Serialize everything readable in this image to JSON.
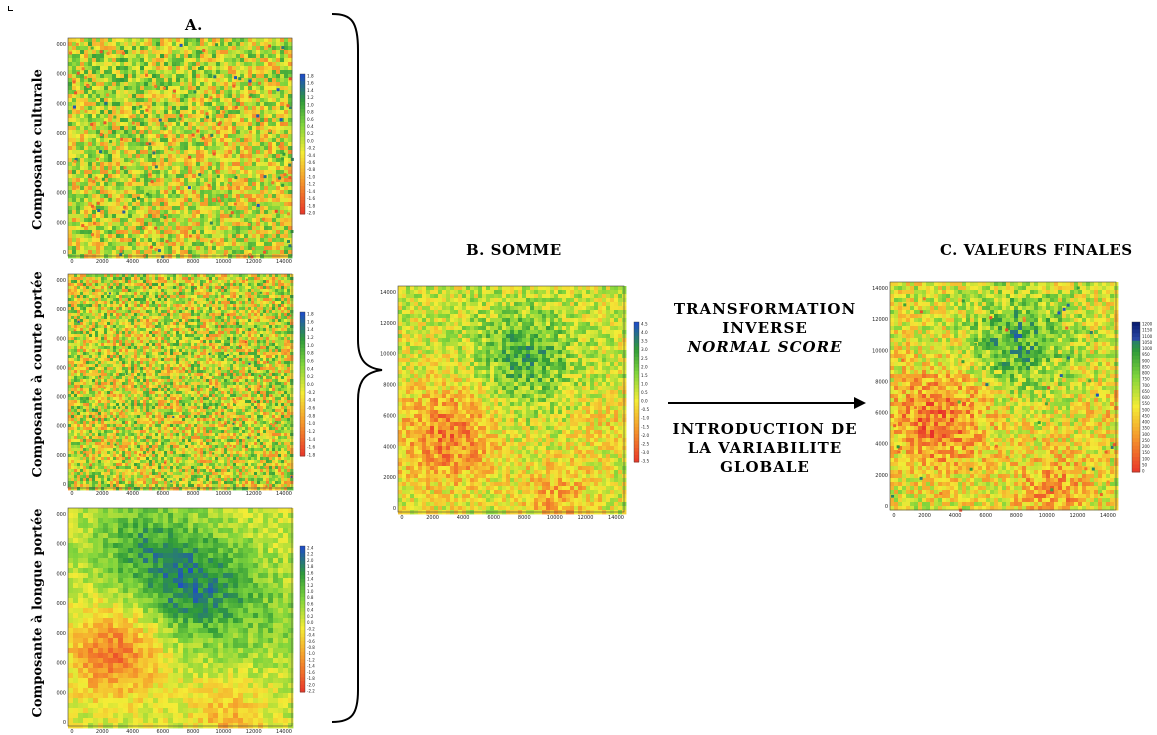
{
  "colors": {
    "low": "#e8312a",
    "mid_low": "#f59a2c",
    "mid": "#f4ec36",
    "mid_high": "#7fd43c",
    "high": "#2f9a3a",
    "top": "#1f4fc4",
    "darkest": "#0b1f73"
  },
  "panel_a": {
    "label": "A.",
    "maps": [
      {
        "side_label": "Composante culturale",
        "texture": "patchy",
        "colorbar_labels": [
          "1.8",
          "1.6",
          "1.4",
          "1.2",
          "1.0",
          "0.8",
          "0.6",
          "0.4",
          "0.2",
          "0.0",
          "-0.2",
          "-0.4",
          "-0.6",
          "-0.8",
          "-1.0",
          "-1.2",
          "-1.4",
          "-1.6",
          "-1.8",
          "-2.0"
        ]
      },
      {
        "side_label": "Composante à courte portée",
        "texture": "fine",
        "colorbar_labels": [
          "1.8",
          "1.6",
          "1.4",
          "1.2",
          "1.0",
          "0.8",
          "0.6",
          "0.4",
          "0.2",
          "0.0",
          "-0.2",
          "-0.4",
          "-0.6",
          "-0.8",
          "-1.0",
          "-1.2",
          "-1.4",
          "-1.6",
          "-1.8"
        ]
      },
      {
        "side_label": "Composante à longue portée",
        "texture": "smooth",
        "colorbar_labels": [
          "2.4",
          "2.2",
          "2.0",
          "1.8",
          "1.6",
          "1.4",
          "1.2",
          "1.0",
          "0.8",
          "0.6",
          "0.4",
          "0.2",
          "0.0",
          "-0.2",
          "-0.4",
          "-0.6",
          "-0.8",
          "-1.0",
          "-1.2",
          "-1.4",
          "-1.6",
          "-1.8",
          "-2.0",
          "-2.2"
        ]
      }
    ]
  },
  "panel_b": {
    "label": "B. SOMME",
    "colorbar_labels": [
      "4.5",
      "4.0",
      "3.5",
      "3.0",
      "2.5",
      "2.0",
      "1.5",
      "1.0",
      "0.5",
      "0.0",
      "-0.5",
      "-1.0",
      "-1.5",
      "-2.0",
      "-2.5",
      "-3.0",
      "-3.5"
    ]
  },
  "panel_c": {
    "label": "C. VALEURS FINALES",
    "colorbar_labels": [
      "1200",
      "1150",
      "1100",
      "1050",
      "1000",
      "950",
      "900",
      "850",
      "800",
      "750",
      "700",
      "650",
      "600",
      "550",
      "500",
      "450",
      "400",
      "350",
      "300",
      "250",
      "200",
      "150",
      "100",
      "50",
      "0"
    ]
  },
  "axis": {
    "y_ticks": [
      "14000",
      "12000",
      "10000",
      "8000",
      "6000",
      "4000",
      "2000",
      "0"
    ],
    "x_ticks": [
      "0",
      "2000",
      "4000",
      "6000",
      "8000",
      "10000",
      "12000",
      "14000"
    ]
  },
  "middle_text": {
    "line1": "TRANSFORMATION",
    "line2": "INVERSE",
    "line3": "NORMAL SCORE",
    "line4": "INTRODUCTION DE",
    "line5": "LA VARIABILITE",
    "line6": "GLOBALE"
  }
}
